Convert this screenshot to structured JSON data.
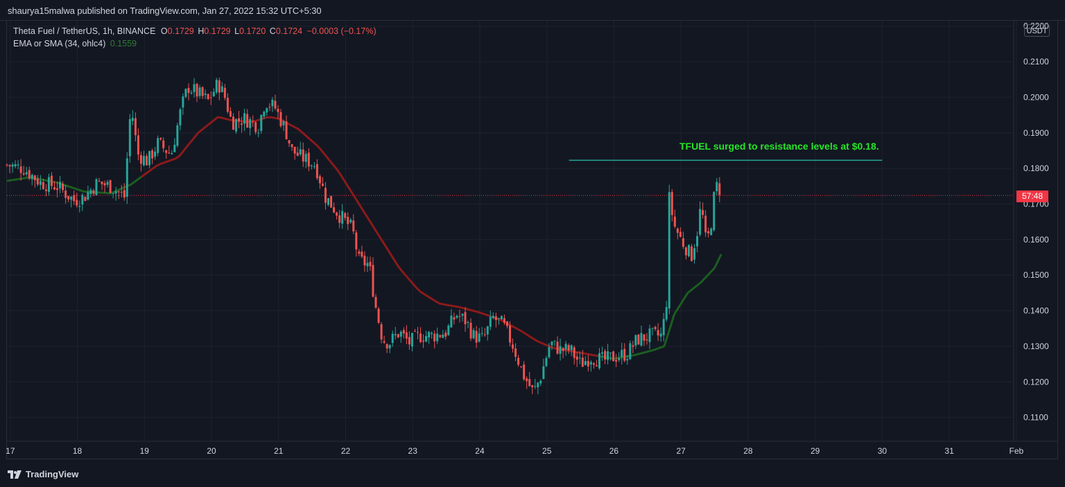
{
  "header": {
    "publish_text": "shaurya15malwa published on TradingView.com, Jan 27, 2022 15:32 UTC+5:30"
  },
  "legend": {
    "symbol": "Theta Fuel / TetherUS, 1h, BINANCE",
    "o_label": "O",
    "o_value": "0.1729",
    "h_label": "H",
    "h_value": "0.1729",
    "l_label": "L",
    "l_value": "0.1720",
    "c_label": "C",
    "c_value": "0.1724",
    "change": "−0.0003 (−0.17%)",
    "ema_label": "EMA or SMA (34, ohlc4)",
    "ema_value": "0.1559"
  },
  "annotation": "TFUEL surged to resistance levels at $0.18.",
  "axis": {
    "currency": "USDT",
    "countdown": "57:48"
  },
  "footer": {
    "brand": "TradingView"
  },
  "colors": {
    "background": "#131722",
    "up": "#26a69a",
    "down": "#ef5350",
    "ema_above": "#8b1a1a",
    "ema_below": "#1b5e20",
    "resistance": "#26a69a",
    "annotation": "#26e626",
    "last_price": "#f23645"
  },
  "chart_data": {
    "type": "candlestick",
    "x_tick_labels": [
      "17",
      "18",
      "19",
      "20",
      "21",
      "22",
      "23",
      "24",
      "25",
      "26",
      "27",
      "28",
      "29",
      "30",
      "31",
      "Feb"
    ],
    "y_tick_labels": [
      "0.1100",
      "0.1200",
      "0.1300",
      "0.1400",
      "0.1500",
      "0.1600",
      "0.1700",
      "0.1800",
      "0.1900",
      "0.2000",
      "0.2100",
      "0.2200"
    ],
    "ylim": [
      0.1035,
      0.2215
    ],
    "xlim": [
      16.95,
      31.95
    ],
    "last_price": 0.1724,
    "resistance": {
      "y": 0.1823,
      "x_start": 25.33,
      "x_end": 30.0
    },
    "close_anchors": [
      [
        16.95,
        0.181
      ],
      [
        17.2,
        0.18
      ],
      [
        17.45,
        0.176
      ],
      [
        17.7,
        0.175
      ],
      [
        17.95,
        0.171
      ],
      [
        18.1,
        0.172
      ],
      [
        18.3,
        0.176
      ],
      [
        18.5,
        0.175
      ],
      [
        18.7,
        0.172
      ],
      [
        18.8,
        0.198
      ],
      [
        18.9,
        0.184
      ],
      [
        19.05,
        0.182
      ],
      [
        19.2,
        0.187
      ],
      [
        19.4,
        0.184
      ],
      [
        19.55,
        0.197
      ],
      [
        19.65,
        0.203
      ],
      [
        19.8,
        0.201
      ],
      [
        19.95,
        0.199
      ],
      [
        20.1,
        0.204
      ],
      [
        20.2,
        0.2
      ],
      [
        20.3,
        0.193
      ],
      [
        20.5,
        0.194
      ],
      [
        20.7,
        0.192
      ],
      [
        20.8,
        0.199
      ],
      [
        20.95,
        0.197
      ],
      [
        21.1,
        0.191
      ],
      [
        21.2,
        0.185
      ],
      [
        21.35,
        0.183
      ],
      [
        21.55,
        0.181
      ],
      [
        21.7,
        0.172
      ],
      [
        21.9,
        0.167
      ],
      [
        22.1,
        0.163
      ],
      [
        22.2,
        0.154
      ],
      [
        22.35,
        0.153
      ],
      [
        22.45,
        0.141
      ],
      [
        22.55,
        0.132
      ],
      [
        22.65,
        0.131
      ],
      [
        22.8,
        0.134
      ],
      [
        22.95,
        0.131
      ],
      [
        23.1,
        0.133
      ],
      [
        23.3,
        0.133
      ],
      [
        23.5,
        0.134
      ],
      [
        23.65,
        0.139
      ],
      [
        23.8,
        0.137
      ],
      [
        23.9,
        0.133
      ],
      [
        24.05,
        0.132
      ],
      [
        24.2,
        0.138
      ],
      [
        24.35,
        0.136
      ],
      [
        24.5,
        0.13
      ],
      [
        24.65,
        0.122
      ],
      [
        24.8,
        0.117
      ],
      [
        24.9,
        0.121
      ],
      [
        25.05,
        0.131
      ],
      [
        25.2,
        0.129
      ],
      [
        25.35,
        0.129
      ],
      [
        25.5,
        0.125
      ],
      [
        25.65,
        0.127
      ],
      [
        25.85,
        0.126
      ],
      [
        26.0,
        0.127
      ],
      [
        26.2,
        0.128
      ],
      [
        26.35,
        0.132
      ],
      [
        26.55,
        0.133
      ],
      [
        26.7,
        0.133
      ],
      [
        26.78,
        0.14
      ],
      [
        26.82,
        0.172
      ],
      [
        26.9,
        0.164
      ],
      [
        27.0,
        0.16
      ],
      [
        27.1,
        0.157
      ],
      [
        27.15,
        0.155
      ],
      [
        27.25,
        0.163
      ],
      [
        27.3,
        0.17
      ],
      [
        27.38,
        0.158
      ],
      [
        27.45,
        0.165
      ],
      [
        27.5,
        0.173
      ],
      [
        27.55,
        0.176
      ],
      [
        27.6,
        0.1724
      ]
    ],
    "ema_anchors": [
      [
        16.95,
        0.1765
      ],
      [
        17.3,
        0.1775
      ],
      [
        17.7,
        0.176
      ],
      [
        18.1,
        0.1735
      ],
      [
        18.5,
        0.173
      ],
      [
        18.8,
        0.1755
      ],
      [
        19.2,
        0.181
      ],
      [
        19.5,
        0.183
      ],
      [
        19.8,
        0.19
      ],
      [
        20.1,
        0.1945
      ],
      [
        20.3,
        0.1935
      ],
      [
        20.6,
        0.193
      ],
      [
        20.85,
        0.1945
      ],
      [
        21.0,
        0.194
      ],
      [
        21.3,
        0.191
      ],
      [
        21.6,
        0.186
      ],
      [
        21.9,
        0.179
      ],
      [
        22.2,
        0.17
      ],
      [
        22.5,
        0.161
      ],
      [
        22.8,
        0.152
      ],
      [
        23.1,
        0.1455
      ],
      [
        23.4,
        0.142
      ],
      [
        23.7,
        0.141
      ],
      [
        24.0,
        0.1395
      ],
      [
        24.3,
        0.1375
      ],
      [
        24.6,
        0.1345
      ],
      [
        24.85,
        0.1315
      ],
      [
        25.1,
        0.1295
      ],
      [
        25.4,
        0.1285
      ],
      [
        25.7,
        0.1275
      ],
      [
        26.0,
        0.1265
      ],
      [
        26.3,
        0.1275
      ],
      [
        26.6,
        0.129
      ],
      [
        26.75,
        0.13
      ],
      [
        26.9,
        0.139
      ],
      [
        27.1,
        0.145
      ],
      [
        27.3,
        0.148
      ],
      [
        27.5,
        0.152
      ],
      [
        27.6,
        0.1559
      ]
    ],
    "ema_cross_x": 25.8
  }
}
